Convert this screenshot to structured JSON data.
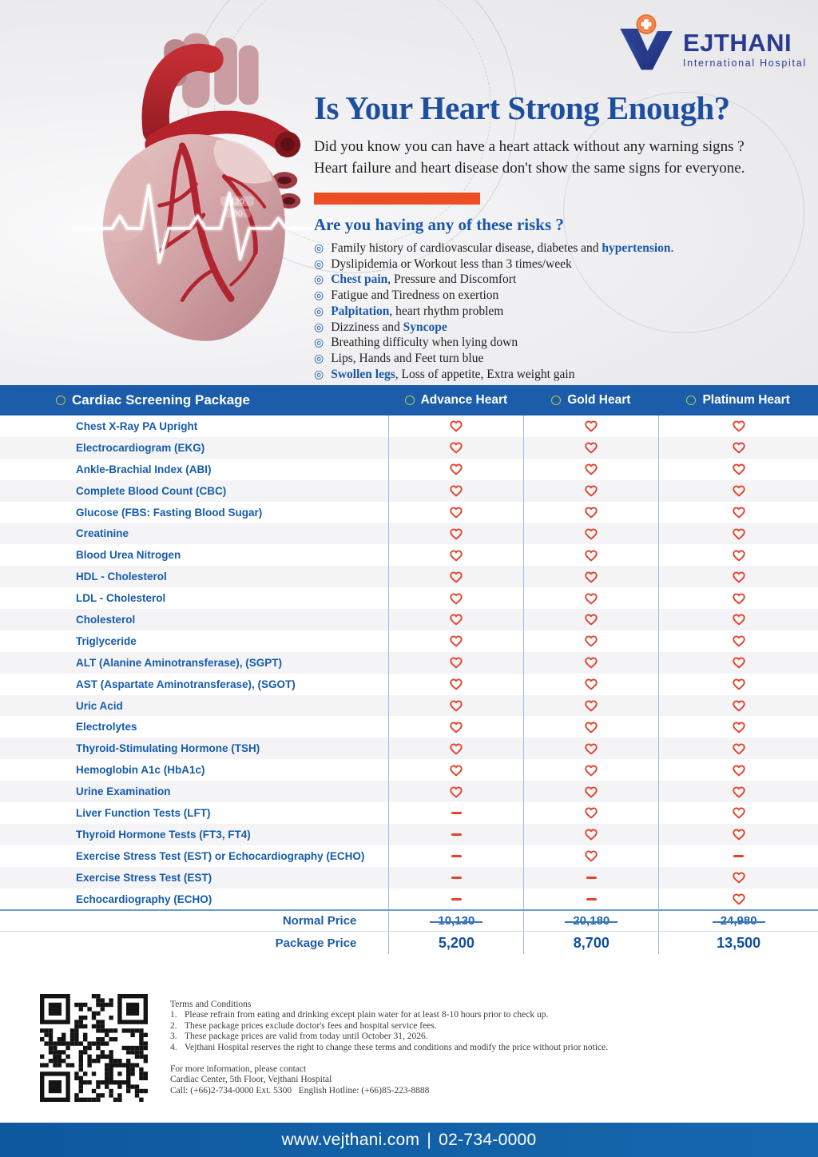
{
  "brand": {
    "name": "EJTHANI",
    "tagline": "International Hospital"
  },
  "hero": {
    "title": "Is Your Heart Strong Enough?",
    "intro": [
      "Did you know you can have a heart attack without any warning signs ?",
      "Heart failure and heart disease don't show the same signs for everyone."
    ],
    "risks_heading": "Are you having any of these risks ?",
    "risks": [
      [
        {
          "t": "Family history of cardiovascular disease, diabetes and "
        },
        {
          "t": "hypertension",
          "b": true
        },
        {
          "t": "."
        }
      ],
      [
        {
          "t": "Dyslipidemia or Workout less than 3 times/week"
        }
      ],
      [
        {
          "t": "Chest pain",
          "b": true
        },
        {
          "t": ", Pressure and Discomfort"
        }
      ],
      [
        {
          "t": "Fatigue and Tiredness on exertion"
        }
      ],
      [
        {
          "t": "Palpitation",
          "b": true
        },
        {
          "t": ", heart rhythm problem"
        }
      ],
      [
        {
          "t": "Dizziness and "
        },
        {
          "t": "Syncope",
          "b": true
        }
      ],
      [
        {
          "t": "Breathing difficulty when lying down"
        }
      ],
      [
        {
          "t": "Lips, Hands and Feet turn blue"
        }
      ],
      [
        {
          "t": "Swollen legs",
          "b": true
        },
        {
          "t": ", Loss of appetite, Extra weight gain"
        }
      ]
    ],
    "bp_overlay": {
      "systolic": "120",
      "diastolic": "80"
    }
  },
  "table": {
    "title": "Cardiac Screening Package",
    "columns": [
      "Advance Heart",
      "Gold Heart",
      "Platinum Heart"
    ],
    "rows": [
      {
        "label": "Chest X-Ray PA Upright",
        "cells": [
          "heart",
          "heart",
          "heart"
        ]
      },
      {
        "label": "Electrocardiogram (EKG)",
        "cells": [
          "heart",
          "heart",
          "heart"
        ]
      },
      {
        "label": "Ankle-Brachial Index (ABI)",
        "cells": [
          "heart",
          "heart",
          "heart"
        ]
      },
      {
        "label": "Complete Blood Count (CBC)",
        "cells": [
          "heart",
          "heart",
          "heart"
        ]
      },
      {
        "label": "Glucose (FBS: Fasting Blood Sugar)",
        "cells": [
          "heart",
          "heart",
          "heart"
        ]
      },
      {
        "label": "Creatinine",
        "cells": [
          "heart",
          "heart",
          "heart"
        ]
      },
      {
        "label": "Blood Urea Nitrogen",
        "cells": [
          "heart",
          "heart",
          "heart"
        ]
      },
      {
        "label": "HDL - Cholesterol",
        "cells": [
          "heart",
          "heart",
          "heart"
        ]
      },
      {
        "label": "LDL - Cholesterol",
        "cells": [
          "heart",
          "heart",
          "heart"
        ]
      },
      {
        "label": "Cholesterol",
        "cells": [
          "heart",
          "heart",
          "heart"
        ]
      },
      {
        "label": "Triglyceride",
        "cells": [
          "heart",
          "heart",
          "heart"
        ]
      },
      {
        "label": "ALT (Alanine Aminotransferase), (SGPT)",
        "cells": [
          "heart",
          "heart",
          "heart"
        ]
      },
      {
        "label": "AST (Aspartate Aminotransferase), (SGOT)",
        "cells": [
          "heart",
          "heart",
          "heart"
        ]
      },
      {
        "label": "Uric Acid",
        "cells": [
          "heart",
          "heart",
          "heart"
        ]
      },
      {
        "label": "Electrolytes",
        "cells": [
          "heart",
          "heart",
          "heart"
        ]
      },
      {
        "label": "Thyroid-Stimulating Hormone (TSH)",
        "cells": [
          "heart",
          "heart",
          "heart"
        ]
      },
      {
        "label": "Hemoglobin A1c (HbA1c)",
        "cells": [
          "heart",
          "heart",
          "heart"
        ]
      },
      {
        "label": "Urine Examination",
        "cells": [
          "heart",
          "heart",
          "heart"
        ]
      },
      {
        "label": "Liver Function Tests (LFT)",
        "cells": [
          "dash",
          "heart",
          "heart"
        ]
      },
      {
        "label": "Thyroid Hormone Tests (FT3, FT4)",
        "cells": [
          "dash",
          "heart",
          "heart"
        ]
      },
      {
        "label": "Exercise Stress Test (EST) or Echocardiography (ECHO)",
        "cells": [
          "dash",
          "heart",
          "dash"
        ]
      },
      {
        "label": "Exercise Stress Test (EST)",
        "cells": [
          "dash",
          "dash",
          "heart"
        ]
      },
      {
        "label": "Echocardiography (ECHO)",
        "cells": [
          "dash",
          "dash",
          "heart"
        ]
      }
    ],
    "normal_price_label": "Normal Price",
    "normal_prices": [
      "10,130",
      "20,180",
      "24,980"
    ],
    "package_price_label": "Package Price",
    "package_prices": [
      "5,200",
      "8,700",
      "13,500"
    ]
  },
  "terms": {
    "heading": "Terms and Conditions",
    "items": [
      "Please refrain from eating and drinking except plain water for at least 8-10 hours prior to check up.",
      "These package prices exclude doctor's fees and hospital service fees.",
      "These package prices are valid from today until October 31, 2026.",
      "Vejthani Hospital reserves the right to change these terms and conditions and modify the price without prior notice."
    ],
    "contact_intro": "For more information, please contact",
    "contact_lines": [
      "Cardiac Center, 5th Floor, Vejthani Hospital",
      "Call: (+66)2-734-0000 Ext. 5300   English Hotline: (+66)85-223-8888"
    ]
  },
  "footer": {
    "website": "www.vejthani.com",
    "separator": "|",
    "phone": "02-734-0000"
  },
  "colors": {
    "header_blue": "#1b5cab",
    "footer_blue": "#1161a8",
    "accent_orange": "#ee4e24",
    "heart_red": "#e2432c",
    "test_blue": "#155bac",
    "title_blue": "#1e4f9f",
    "risk_blue": "#1b57a8",
    "logo_blue": "#2a3a92"
  }
}
